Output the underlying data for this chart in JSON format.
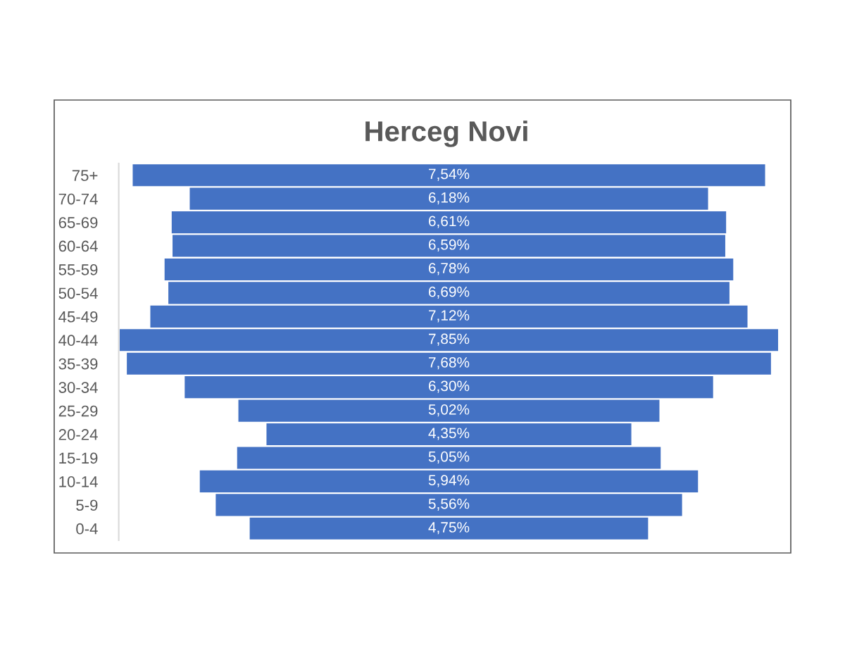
{
  "chart_data": {
    "type": "other",
    "title": "Herceg Novi",
    "categories": [
      "75+",
      "70-74",
      "65-69",
      "60-64",
      "55-59",
      "50-54",
      "45-49",
      "40-44",
      "35-39",
      "30-34",
      "25-29",
      "20-24",
      "15-19",
      "10-14",
      "5-9",
      "0-4"
    ],
    "values": [
      7.54,
      6.18,
      6.61,
      6.59,
      6.78,
      6.69,
      7.12,
      7.85,
      7.68,
      6.3,
      5.02,
      4.35,
      5.05,
      5.94,
      5.56,
      4.75
    ],
    "value_labels": [
      "7,54%",
      "6,18%",
      "6,61%",
      "6,59%",
      "6,78%",
      "6,69%",
      "7,12%",
      "7,85%",
      "7,68%",
      "6,30%",
      "5,02%",
      "4,35%",
      "5,05%",
      "5,94%",
      "5,56%",
      "4,75%"
    ],
    "color": "#4472c4"
  }
}
